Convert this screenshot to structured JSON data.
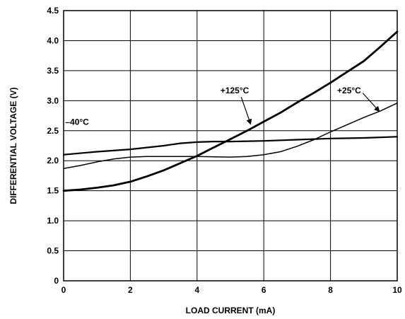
{
  "chart_data": {
    "type": "line",
    "xlabel": "LOAD CURRENT (mA)",
    "ylabel": "DIFFERENTIAL VOLTAGE (V)",
    "xlim": [
      0,
      10
    ],
    "ylim": [
      0,
      4.5
    ],
    "x_ticks": [
      "0",
      "2",
      "4",
      "6",
      "8",
      "10"
    ],
    "y_ticks": [
      "0",
      "0.5",
      "1.0",
      "1.5",
      "2.0",
      "2.5",
      "3.0",
      "3.5",
      "4.0",
      "4.5"
    ],
    "grid": true,
    "series": [
      {
        "name": "–40°C",
        "x": [
          0,
          1,
          2,
          3,
          3.5,
          4,
          4.5,
          5,
          6,
          7,
          8,
          9,
          10
        ],
        "y": [
          2.1,
          2.15,
          2.19,
          2.25,
          2.29,
          2.31,
          2.32,
          2.32,
          2.33,
          2.35,
          2.37,
          2.38,
          2.4
        ]
      },
      {
        "name": "+25°C",
        "x": [
          0,
          0.5,
          1,
          1.5,
          2,
          2.5,
          3,
          4,
          5,
          5.5,
          6,
          6.5,
          7,
          7.5,
          8,
          8.5,
          9,
          9.5,
          10
        ],
        "y": [
          1.87,
          1.92,
          1.98,
          2.03,
          2.06,
          2.07,
          2.07,
          2.07,
          2.06,
          2.07,
          2.1,
          2.15,
          2.24,
          2.35,
          2.48,
          2.6,
          2.72,
          2.83,
          2.96
        ]
      },
      {
        "name": "+125°C",
        "x": [
          0,
          0.5,
          1,
          1.5,
          2,
          2.5,
          3,
          3.5,
          4,
          4.5,
          5,
          5.5,
          6,
          6.5,
          7,
          7.5,
          8,
          8.5,
          9,
          9.5,
          10
        ],
        "y": [
          1.5,
          1.52,
          1.55,
          1.59,
          1.65,
          1.74,
          1.84,
          1.96,
          2.08,
          2.22,
          2.36,
          2.5,
          2.65,
          2.8,
          2.97,
          3.13,
          3.3,
          3.48,
          3.66,
          3.9,
          4.15
        ]
      }
    ],
    "annotations": [
      {
        "text": "–40°C",
        "x": 0.05,
        "y": 2.6
      },
      {
        "text": "+125°C",
        "x": 4.7,
        "y": 3.12,
        "arrow_to": [
          5.6,
          2.62
        ]
      },
      {
        "text": "+25°C",
        "x": 8.2,
        "y": 3.12,
        "arrow_to": [
          9.45,
          2.83
        ]
      }
    ]
  }
}
